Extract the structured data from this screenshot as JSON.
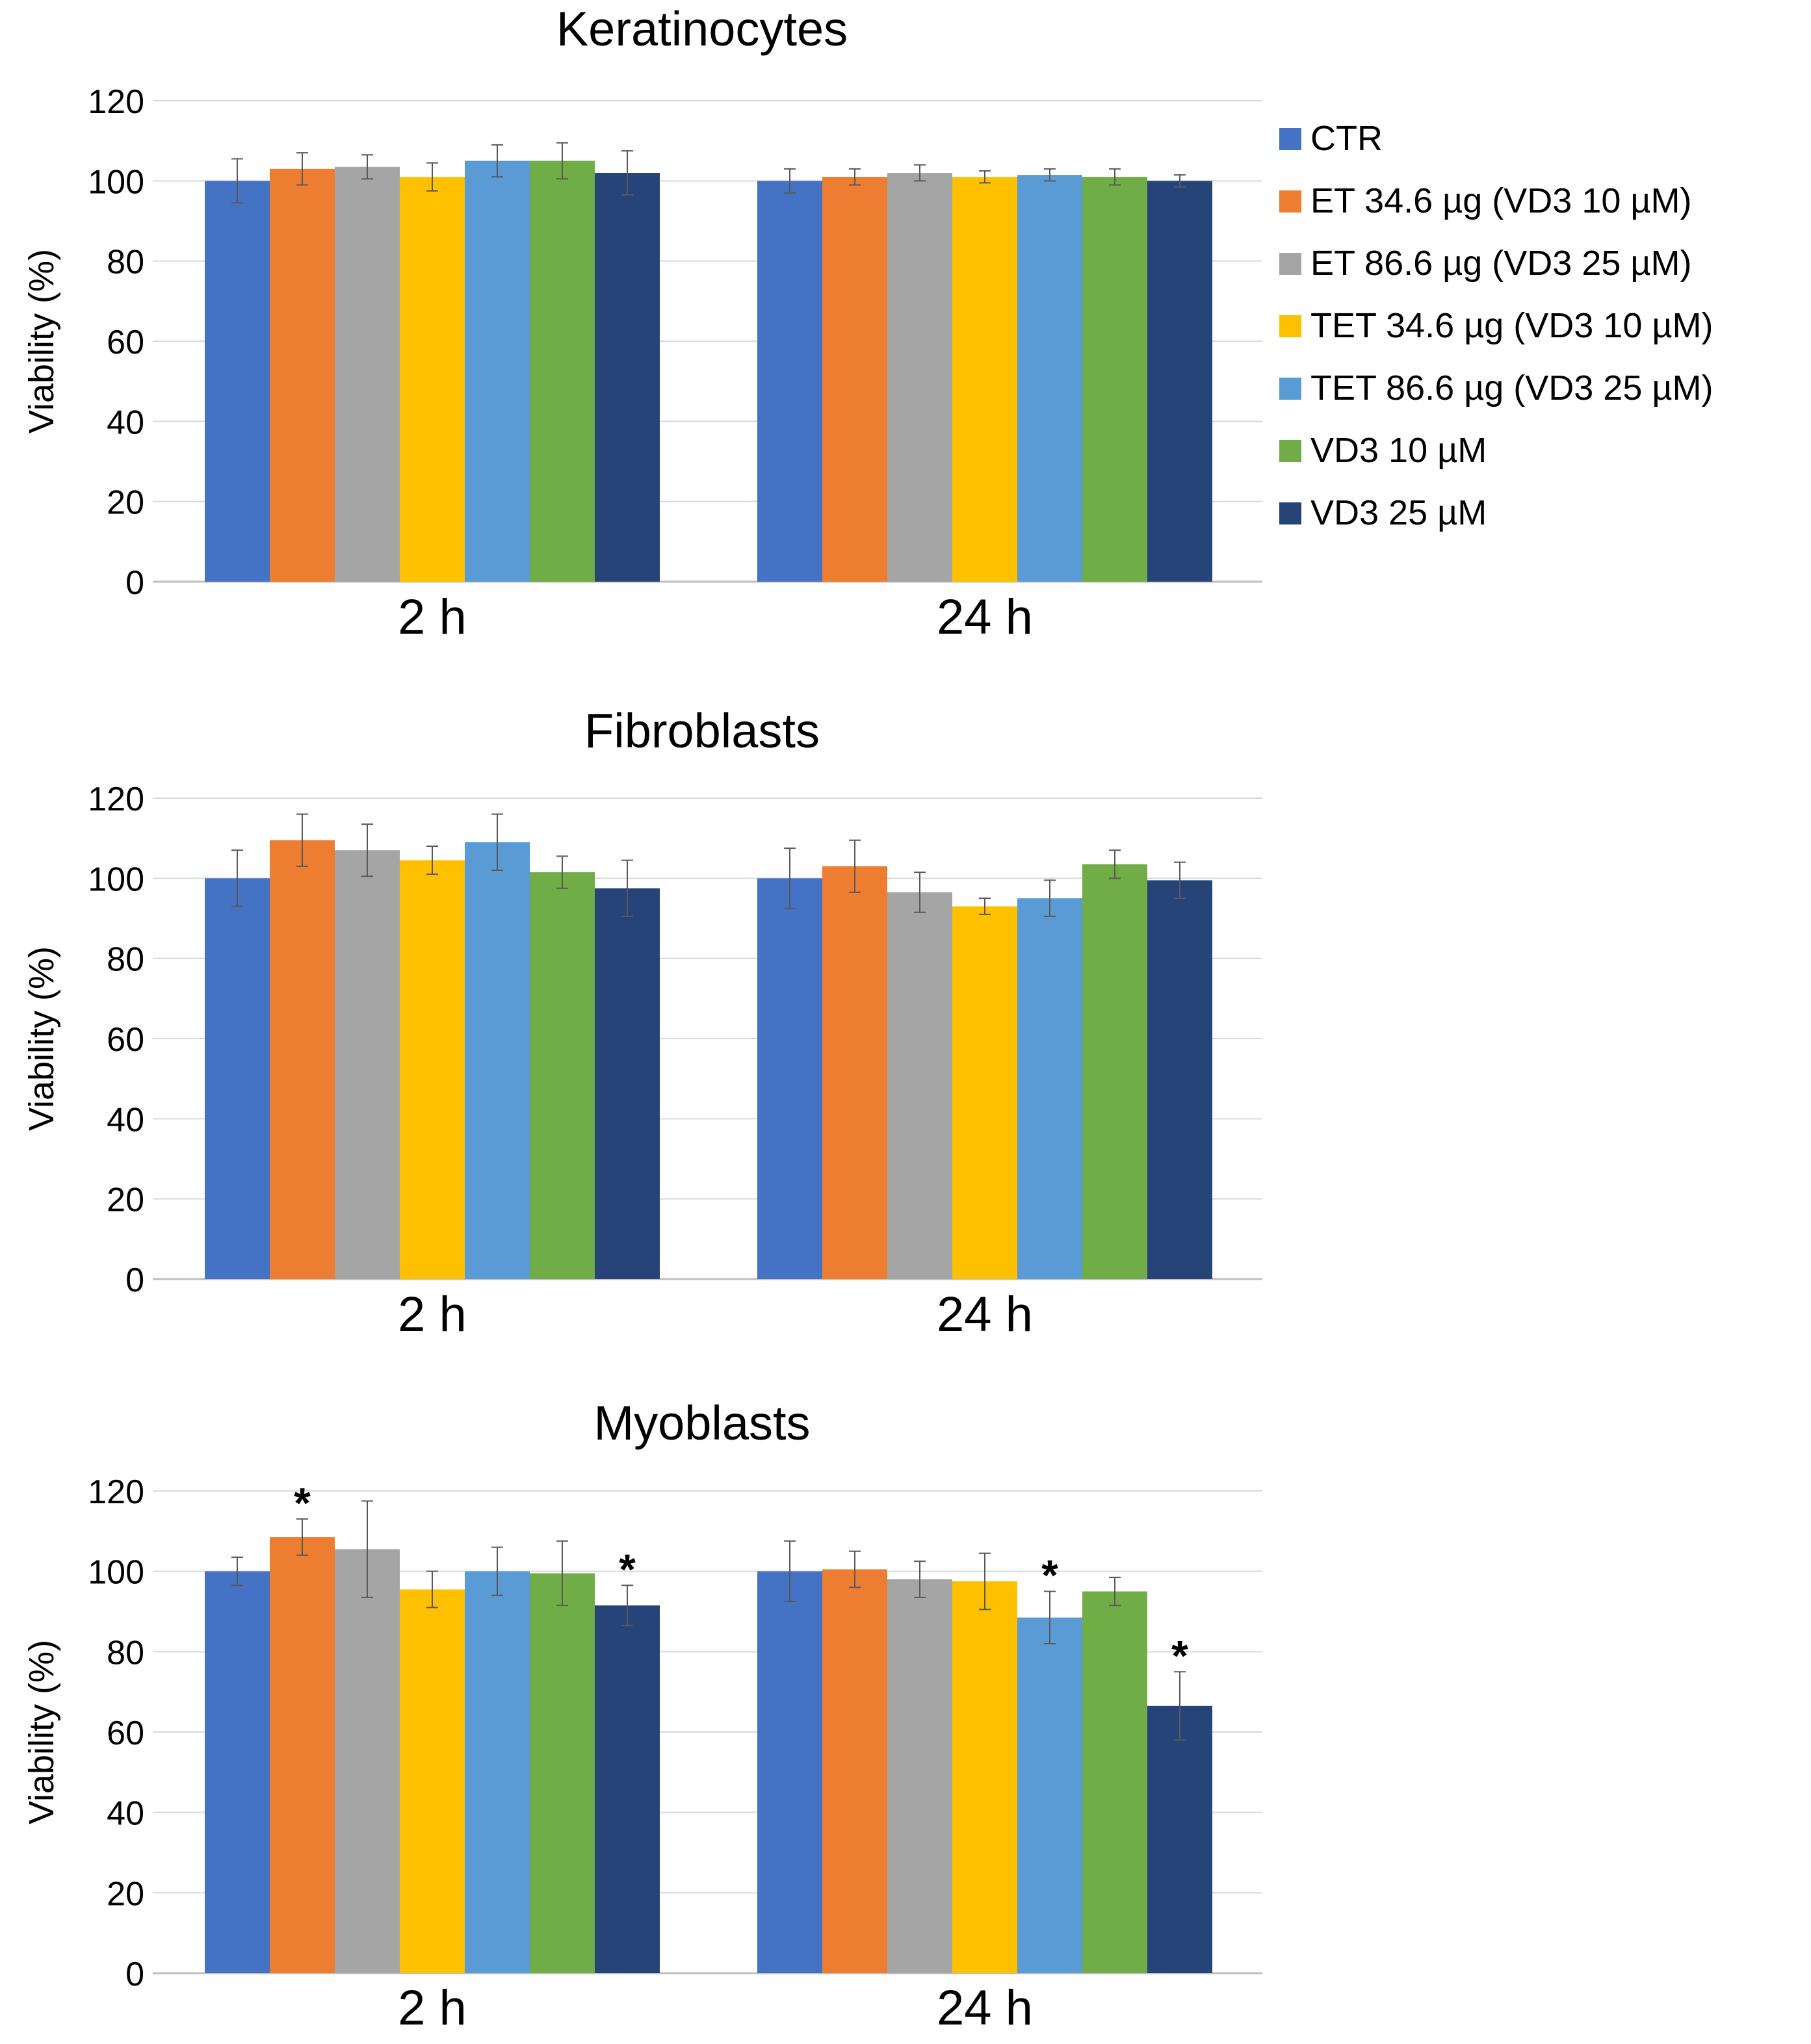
{
  "legend": {
    "items": [
      {
        "label": "CTR",
        "color": "#4472C4"
      },
      {
        "label": "ET 34.6 µg (VD3 10 µM)",
        "color": "#ED7D31"
      },
      {
        "label": "ET 86.6 µg (VD3 25 µM)",
        "color": "#A5A5A5"
      },
      {
        "label": "TET 34.6 µg (VD3 10 µM)",
        "color": "#FFC000"
      },
      {
        "label": "TET 86.6 µg (VD3 25 µM)",
        "color": "#5B9BD5"
      },
      {
        "label": "VD3 10 µM",
        "color": "#70AD47"
      },
      {
        "label": "VD3 25 µM",
        "color": "#264478"
      }
    ]
  },
  "chart_data": [
    {
      "type": "bar",
      "title": "Keratinocytes",
      "ylabel": "Viability (%)",
      "xlabel": "",
      "ylim": [
        0,
        120
      ],
      "yticks": [
        "0",
        "20",
        "40",
        "60",
        "80",
        "100",
        "120"
      ],
      "grid": true,
      "categories": [
        "2 h",
        "24 h"
      ],
      "series": [
        {
          "name": "CTR",
          "values": [
            100,
            100
          ],
          "errors": [
            5.5,
            3
          ]
        },
        {
          "name": "ET 34.6 µg (VD3 10 µM)",
          "values": [
            103,
            101
          ],
          "errors": [
            4,
            2
          ]
        },
        {
          "name": "ET 86.6 µg (VD3 25 µM)",
          "values": [
            103.5,
            102
          ],
          "errors": [
            3,
            2
          ]
        },
        {
          "name": "TET 34.6 µg (VD3 10 µM)",
          "values": [
            101,
            101
          ],
          "errors": [
            3.5,
            1.5
          ]
        },
        {
          "name": "TET 86.6 µg (VD3 25 µM)",
          "values": [
            105,
            101.5
          ],
          "errors": [
            4,
            1.5
          ]
        },
        {
          "name": "VD3 10 µM",
          "values": [
            105,
            101
          ],
          "errors": [
            4.5,
            2
          ]
        },
        {
          "name": "VD3 25 µM",
          "values": [
            102,
            100
          ],
          "errors": [
            5.5,
            1.5
          ]
        }
      ],
      "annotations": []
    },
    {
      "type": "bar",
      "title": "Fibroblasts",
      "ylabel": "Viability (%)",
      "xlabel": "",
      "ylim": [
        0,
        120
      ],
      "yticks": [
        "0",
        "20",
        "40",
        "60",
        "80",
        "100",
        "120"
      ],
      "grid": true,
      "categories": [
        "2 h",
        "24 h"
      ],
      "series": [
        {
          "name": "CTR",
          "values": [
            100,
            100
          ],
          "errors": [
            7,
            7.5
          ]
        },
        {
          "name": "ET 34.6 µg (VD3 10 µM)",
          "values": [
            109.5,
            103
          ],
          "errors": [
            6.5,
            6.5
          ]
        },
        {
          "name": "ET 86.6 µg (VD3 25 µM)",
          "values": [
            107,
            96.5
          ],
          "errors": [
            6.5,
            5
          ]
        },
        {
          "name": "TET 34.6 µg (VD3 10 µM)",
          "values": [
            104.5,
            93
          ],
          "errors": [
            3.5,
            2
          ]
        },
        {
          "name": "TET 86.6 µg (VD3 25 µM)",
          "values": [
            109,
            95
          ],
          "errors": [
            7,
            4.5
          ]
        },
        {
          "name": "VD3 10 µM",
          "values": [
            101.5,
            103.5
          ],
          "errors": [
            4,
            3.5
          ]
        },
        {
          "name": "VD3 25 µM",
          "values": [
            97.5,
            99.5
          ],
          "errors": [
            7,
            4.5
          ]
        }
      ],
      "annotations": []
    },
    {
      "type": "bar",
      "title": "Myoblasts",
      "ylabel": "Viability (%)",
      "xlabel": "",
      "ylim": [
        0,
        120
      ],
      "yticks": [
        "0",
        "20",
        "40",
        "60",
        "80",
        "100",
        "120"
      ],
      "grid": true,
      "categories": [
        "2 h",
        "24 h"
      ],
      "series": [
        {
          "name": "CTR",
          "values": [
            100,
            100
          ],
          "errors": [
            3.5,
            7.5
          ]
        },
        {
          "name": "ET 34.6 µg (VD3 10 µM)",
          "values": [
            108.5,
            100.5
          ],
          "errors": [
            4.5,
            4.5
          ]
        },
        {
          "name": "ET 86.6 µg (VD3 25 µM)",
          "values": [
            105.5,
            98
          ],
          "errors": [
            12,
            4.5
          ]
        },
        {
          "name": "TET 34.6 µg (VD3 10 µM)",
          "values": [
            95.5,
            97.5
          ],
          "errors": [
            4.5,
            7
          ]
        },
        {
          "name": "TET 86.6 µg (VD3 25 µM)",
          "values": [
            100,
            88.5
          ],
          "errors": [
            6,
            6.5
          ]
        },
        {
          "name": "VD3 10 µM",
          "values": [
            99.5,
            95
          ],
          "errors": [
            8,
            3.5
          ]
        },
        {
          "name": "VD3 25 µM",
          "values": [
            91.5,
            66.5
          ],
          "errors": [
            5,
            8.5
          ]
        }
      ],
      "annotations": [
        {
          "text": "*",
          "category": 0,
          "series": 1
        },
        {
          "text": "*",
          "category": 0,
          "series": 6
        },
        {
          "text": "*",
          "category": 1,
          "series": 4
        },
        {
          "text": "*",
          "category": 1,
          "series": 6
        }
      ]
    }
  ]
}
